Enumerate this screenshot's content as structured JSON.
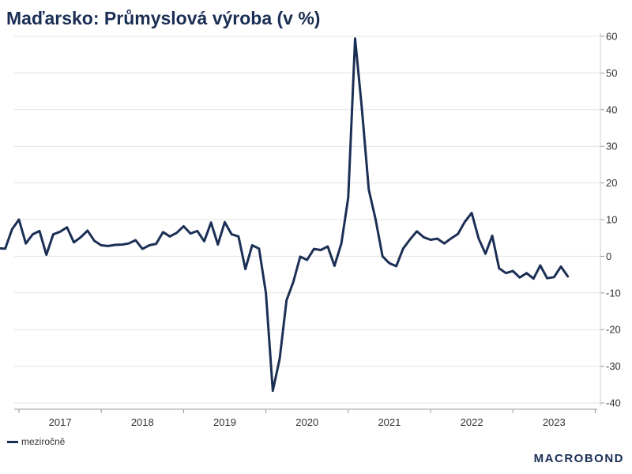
{
  "title": "Maďarsko: Průmyslová výroba (v %)",
  "brand": "MACROBOND",
  "chart_data": {
    "type": "line",
    "title": "Maďarsko: Průmyslová výroba (v %)",
    "ylim": [
      -40,
      60
    ],
    "yticks": [
      60,
      50,
      40,
      30,
      20,
      10,
      0,
      -10,
      -20,
      -30,
      -40
    ],
    "y_axis_position": "right",
    "grid": true,
    "legend_position": "bottom-left",
    "x_year_labels": [
      "2017",
      "2018",
      "2019",
      "2020",
      "2021",
      "2022",
      "2023"
    ],
    "x_start": "2016-10",
    "series": [
      {
        "name": "meziročně",
        "color": "#1b2f55",
        "values": [
          2.2,
          2.1,
          7.4,
          10.0,
          3.5,
          6.0,
          6.9,
          0.4,
          6.0,
          6.7,
          7.9,
          3.8,
          5.2,
          7.0,
          4.2,
          3.0,
          2.8,
          3.1,
          3.2,
          3.5,
          4.4,
          2.0,
          3.0,
          3.4,
          6.6,
          5.4,
          6.4,
          8.2,
          6.2,
          6.9,
          4.1,
          9.2,
          3.2,
          9.3,
          6.0,
          5.4,
          -3.5,
          3.0,
          2.1,
          -10.0,
          -36.7,
          -28.0,
          -12.0,
          -7.0,
          -0.1,
          -1.0,
          2.0,
          1.7,
          2.7,
          -2.6,
          3.5,
          16.0,
          59.4,
          40.0,
          18.2,
          10.0,
          0.0,
          -1.9,
          -2.7,
          2.1,
          4.6,
          6.8,
          5.2,
          4.5,
          4.8,
          3.5,
          4.9,
          6.1,
          9.4,
          11.8,
          4.9,
          0.7,
          5.6,
          -3.3,
          -4.6,
          -4.0,
          -5.8,
          -4.6,
          -6.1,
          -2.5,
          -6.0,
          -5.7,
          -2.8,
          -5.5
        ]
      }
    ]
  }
}
